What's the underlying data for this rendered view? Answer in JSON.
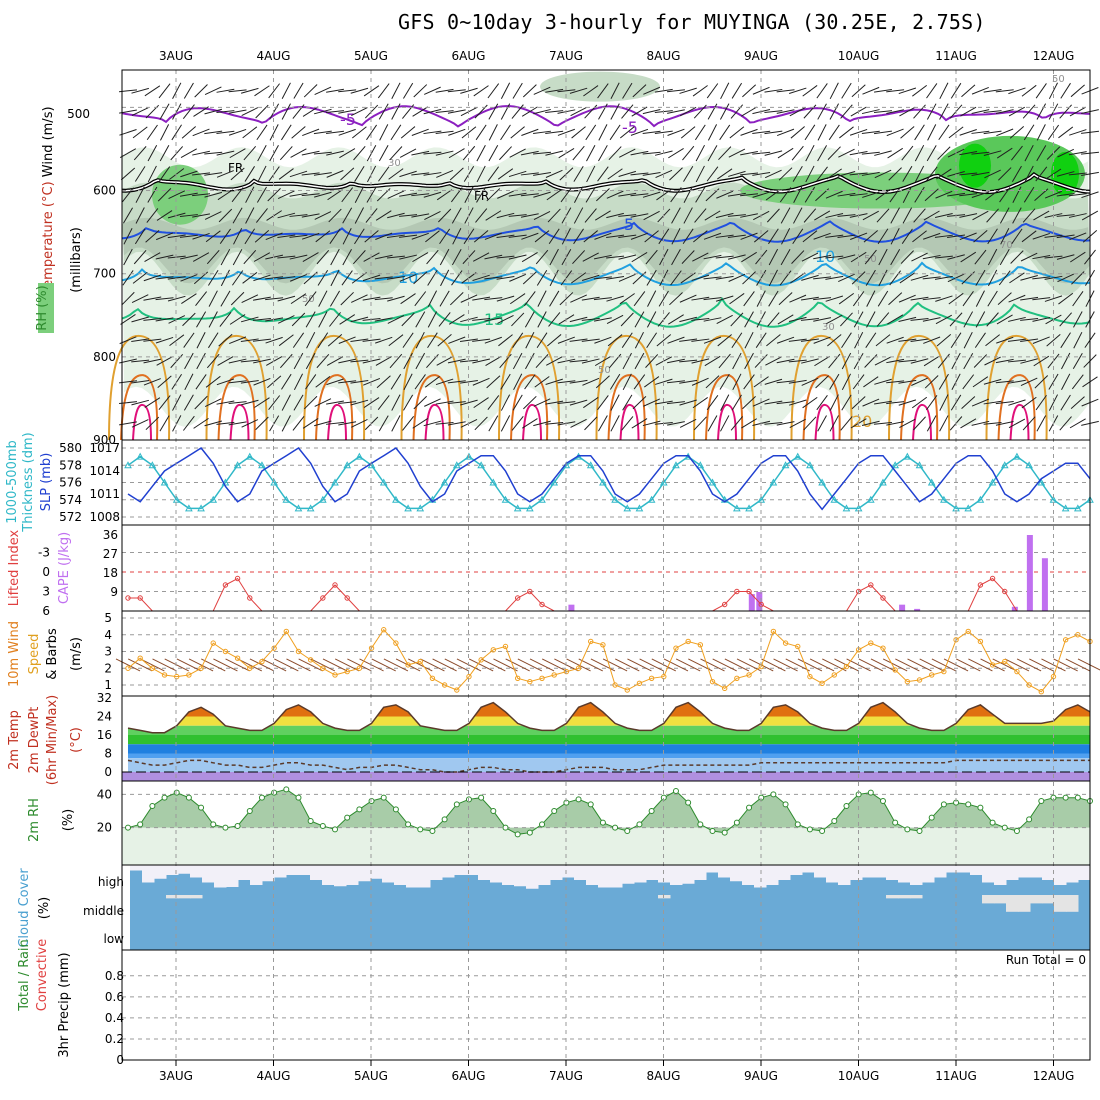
{
  "title": "GFS 0~10day 3-hourly for MUYINGA (30.25E, 2.75S)",
  "colors": {
    "grid": "#9a9a9a",
    "cape": "#c070f0",
    "li": "#e04040",
    "slp": "#2040d0",
    "thick": "#30b8c8",
    "wind": "#f0a020",
    "rh2": "#70b070",
    "cloud": "#6aaad6",
    "cloudOff": "#f2f0f8"
  },
  "chart_data": {
    "type": "meteogram",
    "days": [
      "3AUG",
      "4AUG",
      "5AUG",
      "6AUG",
      "7AUG",
      "8AUG",
      "9AUG",
      "10AUG",
      "11AUG",
      "12AUG"
    ],
    "panels": [
      {
        "id": "upper-air",
        "ylabels": [
          {
            "text": "RH (%)",
            "color": "#2e8b2e"
          },
          {
            "text": "Temperature (°C)",
            "color": "#c03020"
          },
          {
            "text": "Wind (m/s)",
            "color": "#000000"
          },
          {
            "text": "(millibars)",
            "color": "#000000"
          }
        ],
        "yticks": [
          500,
          600,
          700,
          800,
          900
        ],
        "ylim": [
          455,
          900
        ],
        "isotherm_labels": [
          "-5",
          "-5",
          "FR",
          "FR",
          "5",
          "10",
          "10",
          "15",
          "20"
        ],
        "rh_labels": [
          "30",
          "50",
          "50",
          "70",
          "50",
          "30",
          "50"
        ]
      },
      {
        "id": "slp-thickness",
        "ylabels": [
          {
            "text": "1000-500mb",
            "color": "#30b8c8"
          },
          {
            "text": "Thickness (dm)",
            "color": "#30b8c8"
          },
          {
            "text": "SLP (mb)",
            "color": "#2040d0"
          }
        ],
        "thickness_ticks": [
          572,
          574,
          576,
          578,
          580
        ],
        "slp_ticks": [
          1008,
          1011,
          1014,
          1017
        ]
      },
      {
        "id": "li-cape",
        "ylabels": [
          {
            "text": "Lifted Index",
            "color": "#e04040"
          },
          {
            "text": "CAPE (J/kg)",
            "color": "#c070f0"
          }
        ],
        "li_ticks": [
          -3,
          0,
          3,
          6
        ],
        "cape_ticks": [
          9,
          18,
          27,
          36
        ]
      },
      {
        "id": "wind10m",
        "ylabels": [
          {
            "text": "10m Wind",
            "color": "#e08020"
          },
          {
            "text": "Speed",
            "color": "#e0a020"
          },
          {
            "text": "& Barbs",
            "color": "#000000"
          },
          {
            "text": "(m/s)",
            "color": "#000000"
          }
        ],
        "yticks": [
          1,
          2,
          3,
          4,
          5
        ]
      },
      {
        "id": "temp2m",
        "ylabels": [
          {
            "text": "2m Temp",
            "color": "#c03020"
          },
          {
            "text": "2m DewPt",
            "color": "#c03020"
          },
          {
            "text": "(6hr Min/Max)",
            "color": "#c03020"
          },
          {
            "text": "(°C)",
            "color": "#c03020"
          }
        ],
        "yticks": [
          0,
          8,
          16,
          24,
          32
        ]
      },
      {
        "id": "rh2m",
        "ylabels": [
          {
            "text": "2m RH",
            "color": "#2e8b2e"
          },
          {
            "text": "(%)",
            "color": "#000000"
          }
        ],
        "yticks": [
          20,
          40
        ]
      },
      {
        "id": "cloud",
        "ylabels": [
          {
            "text": "Cloud Cover",
            "color": "#4aa0d0"
          },
          {
            "text": "(%)",
            "color": "#000000"
          }
        ],
        "levels": [
          "high",
          "middle",
          "low"
        ]
      },
      {
        "id": "precip",
        "ylabels": [
          {
            "text": "Total / Rain",
            "color": "#2e8b2e"
          },
          {
            "text": "Convective",
            "color": "#e04040"
          },
          {
            "text": "3hr Precip (mm)",
            "color": "#000000"
          }
        ],
        "yticks": [
          "0",
          "0.2",
          "0.4",
          "0.6",
          "0.8"
        ],
        "run_total": "Run Total = 0"
      }
    ],
    "series": {
      "slp": [
        1011,
        1010,
        1012,
        1014,
        1015,
        1016,
        1017,
        1015,
        1012,
        1010,
        1011,
        1014,
        1015,
        1016,
        1017,
        1015,
        1012,
        1010,
        1011,
        1014,
        1015,
        1016,
        1017,
        1015,
        1012,
        1010,
        1011,
        1014,
        1015,
        1016,
        1016,
        1014,
        1011,
        1010,
        1011,
        1013,
        1015,
        1016,
        1016,
        1014,
        1011,
        1010,
        1011,
        1013,
        1015,
        1016,
        1016,
        1014,
        1011,
        1010,
        1011,
        1013,
        1015,
        1016,
        1016,
        1014,
        1011,
        1009,
        1011,
        1013,
        1015,
        1016,
        1016,
        1014,
        1012,
        1010,
        1011,
        1013,
        1015,
        1016,
        1016,
        1014,
        1011,
        1010,
        1011,
        1013,
        1014,
        1015,
        1015,
        1013
      ],
      "thickness": [
        578,
        579,
        578,
        576,
        574,
        573,
        573,
        574,
        576,
        578,
        579,
        578,
        576,
        574,
        573,
        573,
        574,
        576,
        578,
        579,
        578,
        576,
        574,
        573,
        573,
        574,
        576,
        578,
        579,
        578,
        576,
        574,
        573,
        573,
        574,
        576,
        578,
        579,
        578,
        576,
        574,
        573,
        573,
        574,
        576,
        578,
        579,
        578,
        576,
        574,
        573,
        573,
        574,
        576,
        578,
        579,
        578,
        576,
        574,
        573,
        573,
        574,
        576,
        578,
        579,
        578,
        576,
        574,
        573,
        573,
        574,
        576,
        578,
        579,
        578,
        576,
        574,
        573,
        573,
        574
      ],
      "lifted_index": [
        4,
        4,
        6,
        6,
        6,
        6,
        6,
        6,
        2,
        1,
        4,
        6,
        6,
        6,
        6,
        6,
        4,
        2,
        4,
        6,
        6,
        6,
        6,
        6,
        6,
        6,
        6,
        6,
        6,
        6,
        6,
        6,
        4,
        3,
        5,
        6,
        6,
        6,
        6,
        6,
        6,
        6,
        6,
        6,
        6,
        6,
        6,
        6,
        6,
        5,
        3,
        3,
        5,
        6,
        6,
        6,
        6,
        6,
        6,
        6,
        3,
        2,
        4,
        6,
        6,
        6,
        6,
        6,
        6,
        6,
        2,
        1,
        3,
        6,
        6,
        6,
        6,
        6,
        6,
        6
      ],
      "cape_bars": [
        {
          "i": 59,
          "v": 3
        },
        {
          "i": 83,
          "v": 8
        },
        {
          "i": 84,
          "v": 9
        },
        {
          "i": 103,
          "v": 3
        },
        {
          "i": 105,
          "v": 1
        },
        {
          "i": 118,
          "v": 2
        },
        {
          "i": 120,
          "v": 36
        },
        {
          "i": 122,
          "v": 25
        }
      ],
      "wind10m": [
        2,
        2.6,
        2,
        1.6,
        1.5,
        1.6,
        2,
        3.5,
        3,
        2.6,
        2,
        2.4,
        3.2,
        4.2,
        3,
        2.5,
        2,
        1.6,
        1.8,
        2,
        3.2,
        4.3,
        3.5,
        2.2,
        2.4,
        1.4,
        1,
        0.7,
        1.5,
        2.5,
        3.1,
        3.3,
        1.4,
        1.2,
        1.4,
        1.6,
        1.8,
        2,
        3.6,
        3.4,
        1,
        0.7,
        1.1,
        1.4,
        1.5,
        3.2,
        3.6,
        3.4,
        1.2,
        0.8,
        1.4,
        1.6,
        2.1,
        4.2,
        3.5,
        3.3,
        1.5,
        1.1,
        1.6,
        2.1,
        3.1,
        3.5,
        3.2,
        1.9,
        1.2,
        1.3,
        1.6,
        1.8,
        3.7,
        4.2,
        3.6,
        2.2,
        2.4,
        1.8,
        1,
        0.6,
        1.5,
        3.7,
        4,
        3.6
      ],
      "temp2m": [
        19,
        18,
        17,
        17,
        20,
        26,
        28,
        25,
        20,
        19,
        18,
        18,
        21,
        27,
        29,
        26,
        21,
        19,
        18,
        18,
        21,
        28,
        29,
        26,
        20,
        19,
        18,
        18,
        21,
        28,
        30,
        26,
        21,
        19,
        18,
        18,
        21,
        28,
        30,
        26,
        21,
        19,
        18,
        18,
        21,
        28,
        30,
        26,
        21,
        19,
        18,
        18,
        21,
        28,
        29,
        26,
        21,
        19,
        18,
        18,
        21,
        28,
        30,
        26,
        21,
        19,
        18,
        18,
        21,
        27,
        29,
        25,
        21,
        21,
        21,
        21,
        22,
        27,
        29,
        26
      ],
      "dewpt2m": [
        5,
        4,
        3,
        3,
        4,
        5,
        5,
        4,
        3,
        3,
        2,
        2,
        3,
        4,
        4,
        3,
        3,
        2,
        1,
        2,
        2,
        3,
        3,
        2,
        1,
        1,
        0,
        0,
        1,
        2,
        2,
        1,
        1,
        0,
        0,
        0,
        1,
        2,
        2,
        2,
        1,
        1,
        1,
        2,
        3,
        3,
        3,
        3,
        3,
        3,
        3,
        3,
        4,
        4,
        4,
        4,
        4,
        4,
        4,
        4,
        4,
        4,
        4,
        4,
        4,
        4,
        4,
        4,
        5,
        5,
        5,
        5,
        5,
        5,
        5,
        5,
        5,
        5,
        5,
        5
      ],
      "rh2m": [
        20,
        22,
        33,
        38,
        41,
        38,
        32,
        22,
        20,
        21,
        30,
        38,
        41,
        43,
        38,
        24,
        21,
        19,
        26,
        31,
        36,
        38,
        31,
        22,
        19,
        18,
        25,
        34,
        37,
        38,
        30,
        20,
        16,
        17,
        22,
        30,
        35,
        37,
        34,
        23,
        20,
        18,
        22,
        30,
        38,
        42,
        35,
        22,
        18,
        17,
        23,
        32,
        38,
        40,
        34,
        22,
        19,
        18,
        24,
        33,
        40,
        41,
        36,
        23,
        19,
        18,
        26,
        34,
        35,
        34,
        32,
        23,
        20,
        18,
        25,
        36,
        38,
        38,
        38,
        36
      ],
      "cloud_high": [
        78,
        30,
        45,
        60,
        65,
        50,
        30,
        10,
        12,
        40,
        20,
        35,
        50,
        60,
        60,
        40,
        20,
        15,
        20,
        35,
        45,
        30,
        20,
        10,
        10,
        40,
        50,
        60,
        60,
        40,
        30,
        20,
        15,
        5,
        20,
        40,
        50,
        40,
        20,
        10,
        10,
        25,
        30,
        40,
        30,
        20,
        25,
        40,
        70,
        50,
        35,
        20,
        10,
        20,
        40,
        60,
        70,
        50,
        30,
        20,
        40,
        50,
        50,
        40,
        30,
        20,
        30,
        50,
        70,
        70,
        60,
        30,
        20,
        40,
        50,
        50,
        40,
        20,
        30,
        40
      ],
      "cloud_low": [
        100,
        100,
        100,
        92,
        92,
        92,
        100,
        100,
        100,
        100,
        100,
        100,
        100,
        100,
        100,
        100,
        100,
        100,
        100,
        100,
        100,
        100,
        100,
        100,
        100,
        100,
        100,
        100,
        100,
        100,
        100,
        100,
        100,
        100,
        100,
        100,
        100,
        100,
        100,
        100,
        100,
        100,
        100,
        100,
        92,
        100,
        100,
        100,
        100,
        100,
        100,
        100,
        100,
        100,
        100,
        100,
        100,
        100,
        100,
        100,
        100,
        100,
        100,
        92,
        92,
        92,
        100,
        100,
        100,
        100,
        100,
        80,
        80,
        60,
        60,
        80,
        80,
        60,
        60,
        100
      ]
    }
  }
}
